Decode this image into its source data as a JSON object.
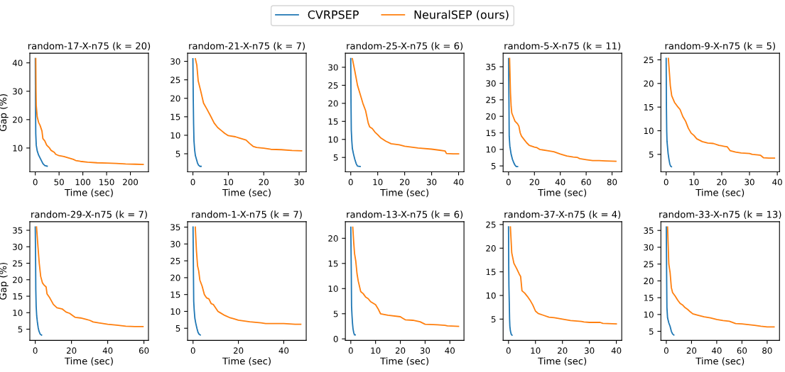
{
  "chart_data": [
    {
      "type": "line",
      "title": "random-17-X-n75 (k = 20)",
      "xlabel": "Time (sec)",
      "ylabel": "Gap (%)",
      "legend": "top",
      "xlim": [
        -11.5,
        238
      ],
      "ylim": [
        1.6,
        43.4
      ],
      "xticks": [
        0,
        50,
        100,
        150,
        200
      ],
      "yticks": [
        10,
        20,
        30,
        40
      ],
      "series": [
        {
          "name": "CVRPSEP",
          "color": "#1f77b4",
          "x": [
            0,
            0.5,
            1,
            2,
            4,
            7,
            10,
            13,
            16,
            20,
            25
          ],
          "values": [
            41.5,
            25,
            15,
            11,
            9,
            7.5,
            6.5,
            5.5,
            4.5,
            3.8,
            3.6
          ]
        },
        {
          "name": "NeuralSEP (ours)",
          "color": "#ff7f0e",
          "x": [
            1,
            1.5,
            2,
            4,
            7,
            10,
            14,
            16,
            20,
            24,
            30,
            33,
            40,
            43,
            50,
            60,
            70,
            80,
            85,
            95,
            110,
            130,
            150,
            170,
            190,
            210,
            227
          ],
          "values": [
            41.5,
            30,
            25,
            21,
            19,
            18,
            16,
            13.3,
            12.5,
            11,
            10,
            9.2,
            8.5,
            7.8,
            7.3,
            7,
            6.5,
            6,
            5.6,
            5.3,
            5.0,
            4.8,
            4.7,
            4.6,
            4.4,
            4.3,
            4.2
          ]
        }
      ]
    },
    {
      "type": "line",
      "title": "random-21-X-n75 (k = 7)",
      "xlabel": "Time (sec)",
      "xlim": [
        -1.5,
        32
      ],
      "ylim": [
        0.1,
        32.2
      ],
      "xticks": [
        0,
        10,
        20,
        30
      ],
      "yticks": [
        5,
        10,
        15,
        20,
        25,
        30
      ],
      "series": [
        {
          "color": "#1f77b4",
          "x": [
            0,
            0.1,
            0.2,
            0.3,
            0.5,
            0.7,
            1,
            1.3,
            1.6,
            2,
            2.3
          ],
          "values": [
            30.7,
            20,
            13,
            8.5,
            6,
            4.5,
            3.5,
            2.5,
            1.9,
            1.6,
            1.6
          ]
        },
        {
          "color": "#ff7f0e",
          "x": [
            0.7,
            1.1,
            1.5,
            2.2,
            3,
            4,
            5,
            6,
            7,
            8,
            9,
            10,
            12,
            13,
            15,
            16,
            17,
            18,
            20,
            22,
            25,
            28,
            30.7
          ],
          "values": [
            30.7,
            29,
            24.7,
            22,
            18.7,
            17,
            15.2,
            13.3,
            12.1,
            11.3,
            10.5,
            9.9,
            9.6,
            9.3,
            8.7,
            7.8,
            7.0,
            6.7,
            6.5,
            6.2,
            6.1,
            5.9,
            5.8
          ]
        }
      ]
    },
    {
      "type": "line",
      "title": "random-25-X-n75 (k = 6)",
      "xlabel": "Time (sec)",
      "xlim": [
        -2,
        42
      ],
      "ylim": [
        1.0,
        33.9
      ],
      "xticks": [
        0,
        10,
        20,
        30,
        40
      ],
      "yticks": [
        5,
        10,
        15,
        20,
        25,
        30
      ],
      "series": [
        {
          "color": "#1f77b4",
          "x": [
            0,
            0.1,
            0.2,
            0.4,
            0.6,
            1,
            1.5,
            2,
            2.5,
            3.5
          ],
          "values": [
            32.4,
            20,
            12.5,
            9.5,
            7.5,
            6,
            4.5,
            3.3,
            2.6,
            2.5
          ]
        },
        {
          "color": "#ff7f0e",
          "x": [
            0.6,
            1.5,
            2.5,
            3.5,
            4.5,
            5.5,
            6.5,
            7,
            8,
            9,
            10,
            11,
            13,
            15,
            18,
            20,
            25,
            30,
            33,
            35,
            35.5,
            38,
            40
          ],
          "values": [
            32.4,
            29,
            25,
            22.5,
            20,
            18,
            14.5,
            13.5,
            13,
            12,
            11.3,
            10.5,
            9.5,
            8.8,
            8.5,
            8.1,
            7.6,
            7.3,
            7,
            6.8,
            6.1,
            6,
            6
          ]
        }
      ]
    },
    {
      "type": "line",
      "title": "random-5-X-n75 (k = 11)",
      "xlabel": "Time (sec)",
      "xlim": [
        -4.2,
        87.5
      ],
      "ylim": [
        3.2,
        39.1
      ],
      "xticks": [
        0,
        20,
        40,
        60,
        80
      ],
      "yticks": [
        5,
        10,
        15,
        20,
        25,
        30,
        35
      ],
      "series": [
        {
          "color": "#1f77b4",
          "x": [
            0,
            0.3,
            0.5,
            1,
            2,
            3,
            4,
            5,
            6,
            7
          ],
          "values": [
            37.5,
            25,
            14,
            11,
            8.5,
            7,
            6,
            5.2,
            4.8,
            4.8
          ]
        },
        {
          "color": "#ff7f0e",
          "x": [
            0.8,
            1.5,
            2,
            2.5,
            4,
            5,
            7,
            8,
            9,
            10,
            12,
            14,
            16,
            20,
            22,
            24,
            30,
            35,
            40,
            45,
            50,
            53,
            55,
            60,
            65,
            70,
            75,
            83
          ],
          "values": [
            37.5,
            27,
            23,
            21,
            19.5,
            18.5,
            17.7,
            17,
            15,
            14,
            13,
            12,
            11.2,
            10.7,
            10.5,
            10,
            9.6,
            9.3,
            8.6,
            8,
            7.7,
            7.6,
            7.2,
            6.9,
            6.6,
            6.6,
            6.5,
            6.4
          ]
        }
      ]
    },
    {
      "type": "line",
      "title": "random-9-X-n75 (k = 5)",
      "xlabel": "Time (sec)",
      "xlim": [
        -1.9,
        40.8
      ],
      "ylim": [
        1.3,
        26.4
      ],
      "xticks": [
        0,
        10,
        20,
        30,
        40
      ],
      "yticks": [
        5,
        10,
        15,
        20,
        25
      ],
      "series": [
        {
          "color": "#1f77b4",
          "x": [
            0,
            0.1,
            0.2,
            0.3,
            0.5,
            0.7,
            1,
            1.3,
            1.6,
            1.9
          ],
          "values": [
            25.3,
            15,
            10,
            7.8,
            6.5,
            5.2,
            4,
            3,
            2.5,
            2.4
          ]
        },
        {
          "color": "#ff7f0e",
          "x": [
            0.8,
            1.2,
            1.5,
            2,
            3,
            4,
            5,
            6,
            7,
            8,
            9,
            10,
            11,
            12,
            13,
            15,
            17,
            19,
            21,
            22,
            23,
            25,
            27,
            30,
            31,
            33,
            34,
            35,
            37,
            39
          ],
          "values": [
            25.3,
            22,
            19.5,
            17.4,
            16,
            15.2,
            14.5,
            13,
            12,
            10.5,
            9.5,
            9,
            8.3,
            8,
            7.7,
            7.4,
            7.3,
            6.9,
            6.7,
            6.6,
            5.8,
            5.5,
            5.3,
            5.2,
            5,
            4.9,
            4.8,
            4.3,
            4.2,
            4.2
          ]
        }
      ]
    },
    {
      "type": "line",
      "title": "random-29-X-n75 (k = 7)",
      "xlabel": "Time (sec)",
      "ylabel": "Gap (%)",
      "xlim": [
        -3,
        62.5
      ],
      "ylim": [
        1.6,
        37.6
      ],
      "xticks": [
        0,
        20,
        40,
        60
      ],
      "yticks": [
        5,
        10,
        15,
        20,
        25,
        30,
        35
      ],
      "series": [
        {
          "color": "#1f77b4",
          "x": [
            0,
            0.2,
            0.3,
            0.5,
            0.8,
            1.2,
            1.6,
            2,
            2.7,
            3.5
          ],
          "values": [
            36,
            25,
            17,
            12,
            9,
            7,
            5.5,
            4.5,
            3.5,
            3.2
          ]
        },
        {
          "color": "#ff7f0e",
          "x": [
            0.7,
            1.5,
            2.2,
            3,
            4,
            5,
            6,
            6.5,
            8,
            10,
            12,
            15,
            17,
            19,
            21,
            22,
            25,
            28,
            30,
            32,
            35,
            40,
            45,
            50,
            55,
            59.5
          ],
          "values": [
            36,
            30,
            25,
            21,
            19,
            18.3,
            17.8,
            15.7,
            14.5,
            12.5,
            11.5,
            11.1,
            10.2,
            9.8,
            9,
            8.6,
            8.4,
            8.0,
            7.7,
            7.2,
            6.9,
            6.5,
            6.2,
            5.9,
            5.8,
            5.8
          ]
        }
      ]
    },
    {
      "type": "line",
      "title": "random-1-X-n75 (k = 7)",
      "xlabel": "Time (sec)",
      "xlim": [
        -2.4,
        49.9
      ],
      "ylim": [
        1.4,
        36.6
      ],
      "xticks": [
        0,
        20,
        40
      ],
      "yticks": [
        5,
        10,
        15,
        20,
        25,
        30,
        35
      ],
      "series": [
        {
          "color": "#1f77b4",
          "x": [
            0,
            0.2,
            0.3,
            0.5,
            0.8,
            1.2,
            1.7,
            2.2,
            2.7,
            3.2
          ],
          "values": [
            35,
            20,
            13,
            10.5,
            8,
            6.5,
            5,
            3.8,
            3.2,
            3.0
          ]
        },
        {
          "color": "#ff7f0e",
          "x": [
            1,
            1.5,
            2,
            2.5,
            3,
            4,
            5,
            6,
            7,
            8,
            9,
            10,
            11,
            12,
            14,
            16,
            18,
            20,
            25,
            30,
            32,
            40,
            45,
            47.5
          ],
          "values": [
            35,
            28,
            23.5,
            22,
            19.3,
            17.5,
            15,
            14,
            13.7,
            12.3,
            12,
            11,
            10,
            9.6,
            8.8,
            8.2,
            7.8,
            7.4,
            6.9,
            6.6,
            6.4,
            6.4,
            6.2,
            6.2
          ]
        }
      ]
    },
    {
      "type": "line",
      "title": "random-13-X-n75 (k = 6)",
      "xlabel": "Time (sec)",
      "xlim": [
        -2.2,
        45.7
      ],
      "ylim": [
        -0.3,
        23.3
      ],
      "xticks": [
        0,
        10,
        20,
        30,
        40
      ],
      "yticks": [
        0,
        5,
        10,
        15,
        20
      ],
      "series": [
        {
          "color": "#1f77b4",
          "x": [
            0,
            0.2,
            0.3,
            0.5,
            0.7,
            0.9,
            1.2,
            1.5,
            1.8
          ],
          "values": [
            22.2,
            13,
            6.5,
            4.5,
            3,
            2,
            1.2,
            0.8,
            0.8
          ]
        },
        {
          "color": "#ff7f0e",
          "x": [
            0.8,
            1.2,
            1.5,
            2,
            2.5,
            3,
            4,
            5,
            6,
            7,
            8,
            10,
            11,
            12,
            15,
            20,
            21,
            22,
            25,
            27,
            28,
            30,
            35,
            38,
            39,
            43.5
          ],
          "values": [
            22.2,
            19,
            17,
            15.5,
            13,
            11.5,
            9.4,
            9,
            8.3,
            8,
            7.4,
            6.8,
            6,
            5,
            4.7,
            4.4,
            4.1,
            3.8,
            3.7,
            3.5,
            3.4,
            2.9,
            2.8,
            2.7,
            2.6,
            2.5
          ]
        }
      ]
    },
    {
      "type": "line",
      "title": "random-37-X-n75 (k = 4)",
      "xlabel": "Time (sec)",
      "xlim": [
        -2,
        42
      ],
      "ylim": [
        0.5,
        25.6
      ],
      "xticks": [
        0,
        10,
        20,
        30,
        40
      ],
      "yticks": [
        5,
        10,
        15,
        20,
        25
      ],
      "series": [
        {
          "color": "#1f77b4",
          "x": [
            0,
            0.1,
            0.15,
            0.3,
            0.4,
            0.5,
            0.7,
            1,
            1.3
          ],
          "values": [
            24.5,
            15,
            12,
            8,
            5,
            3.5,
            2.5,
            1.8,
            1.6
          ]
        },
        {
          "color": "#ff7f0e",
          "x": [
            0.7,
            1.2,
            2,
            3,
            4,
            4.5,
            5,
            6,
            7,
            8,
            9,
            10,
            11,
            13,
            15,
            17,
            20,
            23,
            27,
            28,
            30,
            34,
            35,
            40
          ],
          "values": [
            24.5,
            19,
            16.8,
            15.7,
            14.5,
            14,
            11,
            10.5,
            9.8,
            9,
            8,
            6.7,
            6.2,
            5.8,
            5.4,
            5.3,
            5.0,
            4.7,
            4.5,
            4.4,
            4.3,
            4.3,
            4.1,
            4.0
          ]
        }
      ]
    },
    {
      "type": "line",
      "title": "random-33-X-n75 (k = 13)",
      "xlabel": "Time (sec)",
      "xlim": [
        -4.3,
        89.8
      ],
      "ylim": [
        2.3,
        37.6
      ],
      "xticks": [
        0,
        20,
        40,
        60,
        80
      ],
      "yticks": [
        5,
        10,
        15,
        20,
        25,
        30,
        35
      ],
      "series": [
        {
          "color": "#1f77b4",
          "x": [
            0,
            0.3,
            0.5,
            1,
            2,
            3,
            4,
            5,
            6
          ],
          "values": [
            36,
            20,
            12,
            9,
            7.5,
            6.5,
            5,
            4.2,
            3.9
          ]
        },
        {
          "color": "#ff7f0e",
          "x": [
            1,
            2,
            3,
            4,
            5,
            7,
            9,
            11,
            13,
            15,
            17,
            19,
            21,
            25,
            30,
            35,
            40,
            45,
            50,
            55,
            60,
            65,
            70,
            75,
            80,
            85.5
          ],
          "values": [
            36,
            25,
            22.5,
            18,
            16.5,
            15.5,
            14.3,
            13.3,
            12.8,
            12,
            11.5,
            10.8,
            10.2,
            9.8,
            9.3,
            9,
            8.5,
            8.2,
            8,
            7.3,
            7.2,
            7,
            6.8,
            6.5,
            6.3,
            6.3
          ]
        }
      ]
    }
  ]
}
